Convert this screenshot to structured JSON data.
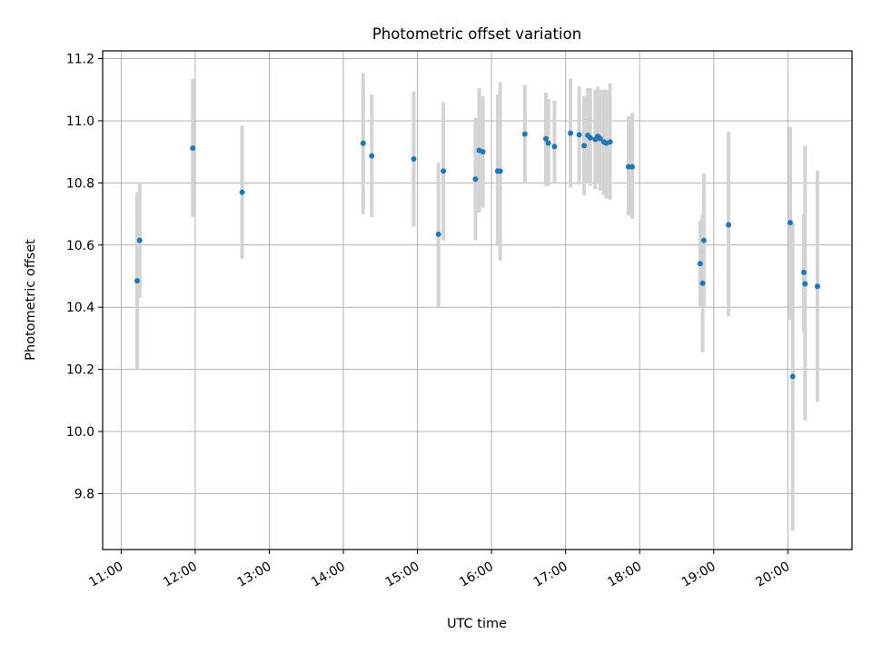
{
  "chart_data": {
    "type": "scatter",
    "title": "Photometric offset variation",
    "xlabel": "UTC time",
    "ylabel": "Photometric offset",
    "x_ticks": [
      "11:00",
      "12:00",
      "13:00",
      "14:00",
      "15:00",
      "16:00",
      "17:00",
      "18:00",
      "19:00",
      "20:00"
    ],
    "y_ticks": [
      "9.8",
      "10.0",
      "10.2",
      "10.4",
      "10.6",
      "10.8",
      "11.0",
      "11.2"
    ],
    "grid": true,
    "point_color": "#1f77b4",
    "errorbar_color": "#d3d3d3",
    "x_range": [
      "10:45",
      "20:52"
    ],
    "y_range": [
      9.62,
      11.225
    ],
    "points": [
      {
        "time": "11:13",
        "y": 10.485,
        "ylo": 10.2,
        "yhi": 10.77
      },
      {
        "time": "11:15",
        "y": 10.615,
        "ylo": 10.43,
        "yhi": 10.8
      },
      {
        "time": "11:58",
        "y": 10.912,
        "ylo": 10.69,
        "yhi": 11.135
      },
      {
        "time": "12:38",
        "y": 10.77,
        "ylo": 10.555,
        "yhi": 10.985
      },
      {
        "time": "14:16",
        "y": 10.928,
        "ylo": 10.7,
        "yhi": 11.155
      },
      {
        "time": "14:23",
        "y": 10.887,
        "ylo": 10.69,
        "yhi": 11.085
      },
      {
        "time": "14:57",
        "y": 10.877,
        "ylo": 10.66,
        "yhi": 11.095
      },
      {
        "time": "15:17",
        "y": 10.635,
        "ylo": 10.4,
        "yhi": 10.865
      },
      {
        "time": "15:21",
        "y": 10.838,
        "ylo": 10.615,
        "yhi": 11.06
      },
      {
        "time": "15:47",
        "y": 10.812,
        "ylo": 10.615,
        "yhi": 11.01
      },
      {
        "time": "15:50",
        "y": 10.905,
        "ylo": 10.705,
        "yhi": 11.105
      },
      {
        "time": "15:53",
        "y": 10.9,
        "ylo": 10.72,
        "yhi": 11.08
      },
      {
        "time": "16:05",
        "y": 10.838,
        "ylo": 10.6,
        "yhi": 11.085
      },
      {
        "time": "16:07",
        "y": 10.838,
        "ylo": 10.55,
        "yhi": 11.125
      },
      {
        "time": "16:27",
        "y": 10.957,
        "ylo": 10.8,
        "yhi": 11.115
      },
      {
        "time": "16:44",
        "y": 10.942,
        "ylo": 10.79,
        "yhi": 11.09
      },
      {
        "time": "16:46",
        "y": 10.928,
        "ylo": 10.79,
        "yhi": 11.07
      },
      {
        "time": "16:51",
        "y": 10.917,
        "ylo": 10.8,
        "yhi": 11.065
      },
      {
        "time": "17:04",
        "y": 10.96,
        "ylo": 10.785,
        "yhi": 11.135
      },
      {
        "time": "17:11",
        "y": 10.955,
        "ylo": 10.795,
        "yhi": 11.11
      },
      {
        "time": "17:15",
        "y": 10.92,
        "ylo": 10.76,
        "yhi": 11.08
      },
      {
        "time": "17:18",
        "y": 10.953,
        "ylo": 10.8,
        "yhi": 11.105
      },
      {
        "time": "17:20",
        "y": 10.945,
        "ylo": 10.79,
        "yhi": 11.105
      },
      {
        "time": "17:24",
        "y": 10.94,
        "ylo": 10.78,
        "yhi": 11.1
      },
      {
        "time": "17:26",
        "y": 10.95,
        "ylo": 10.8,
        "yhi": 11.11
      },
      {
        "time": "17:28",
        "y": 10.943,
        "ylo": 10.775,
        "yhi": 11.1
      },
      {
        "time": "17:31",
        "y": 10.932,
        "ylo": 10.76,
        "yhi": 11.1
      },
      {
        "time": "17:33",
        "y": 10.928,
        "ylo": 10.75,
        "yhi": 11.1
      },
      {
        "time": "17:36",
        "y": 10.932,
        "ylo": 10.745,
        "yhi": 11.12
      },
      {
        "time": "17:51",
        "y": 10.852,
        "ylo": 10.695,
        "yhi": 11.015
      },
      {
        "time": "17:54",
        "y": 10.852,
        "ylo": 10.685,
        "yhi": 11.025
      },
      {
        "time": "18:49",
        "y": 10.54,
        "ylo": 10.4,
        "yhi": 10.68
      },
      {
        "time": "18:51",
        "y": 10.477,
        "ylo": 10.255,
        "yhi": 10.7
      },
      {
        "time": "18:52",
        "y": 10.615,
        "ylo": 10.4,
        "yhi": 10.83
      },
      {
        "time": "19:12",
        "y": 10.665,
        "ylo": 10.37,
        "yhi": 10.965
      },
      {
        "time": "20:02",
        "y": 10.672,
        "ylo": 10.36,
        "yhi": 10.98
      },
      {
        "time": "20:04",
        "y": 10.177,
        "ylo": 9.68,
        "yhi": 10.67
      },
      {
        "time": "20:13",
        "y": 10.512,
        "ylo": 10.32,
        "yhi": 10.7
      },
      {
        "time": "20:14",
        "y": 10.475,
        "ylo": 10.035,
        "yhi": 10.92
      },
      {
        "time": "20:24",
        "y": 10.467,
        "ylo": 10.095,
        "yhi": 10.84
      }
    ]
  }
}
